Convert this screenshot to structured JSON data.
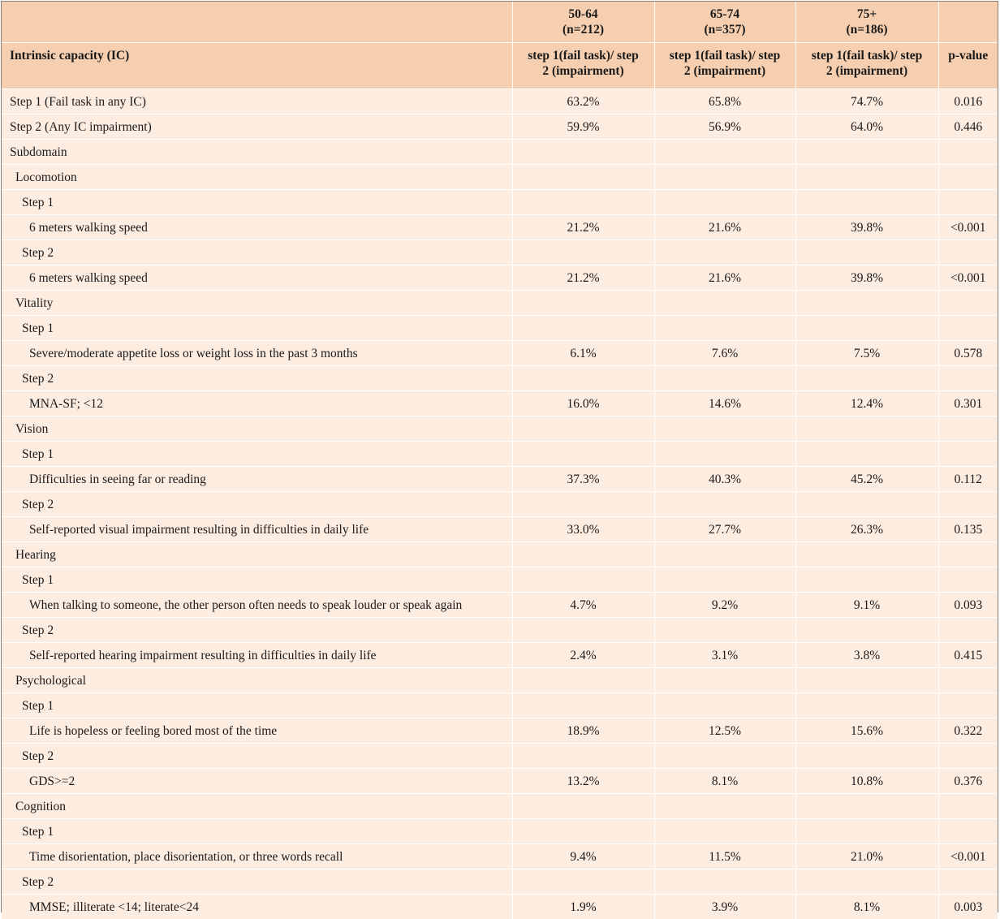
{
  "header": {
    "groups": [
      {
        "age": "50-64",
        "n": "(n=212)"
      },
      {
        "age": "65-74",
        "n": "(n=357)"
      },
      {
        "age": "75+",
        "n": "(n=186)"
      }
    ],
    "row_label": "Intrinsic capacity (IC)",
    "step_header": [
      "step 1(fail task)/   step",
      "2 (impairment)"
    ],
    "pvalue_label": "p-value"
  },
  "rows": [
    {
      "label": "Step 1 (Fail task in any IC)",
      "indent": 0,
      "values": [
        "63.2%",
        "65.8%",
        "74.7%"
      ],
      "p": "0.016"
    },
    {
      "label": "Step 2 (Any IC impairment)",
      "indent": 0,
      "values": [
        "59.9%",
        "56.9%",
        "64.0%"
      ],
      "p": "0.446"
    },
    {
      "label": "Subdomain",
      "indent": 0,
      "values": [
        "",
        "",
        ""
      ],
      "p": ""
    },
    {
      "label": "Locomotion",
      "indent": 1,
      "values": [
        "",
        "",
        ""
      ],
      "p": ""
    },
    {
      "label": "Step 1",
      "indent": 2,
      "values": [
        "",
        "",
        ""
      ],
      "p": ""
    },
    {
      "label": "6 meters walking speed",
      "indent": 3,
      "values": [
        "21.2%",
        "21.6%",
        "39.8%"
      ],
      "p": "<0.001"
    },
    {
      "label": "Step 2",
      "indent": 2,
      "values": [
        "",
        "",
        ""
      ],
      "p": ""
    },
    {
      "label": "6 meters walking speed",
      "indent": 3,
      "values": [
        "21.2%",
        "21.6%",
        "39.8%"
      ],
      "p": "<0.001"
    },
    {
      "label": "Vitality",
      "indent": 1,
      "values": [
        "",
        "",
        ""
      ],
      "p": ""
    },
    {
      "label": "Step 1",
      "indent": 2,
      "values": [
        "",
        "",
        ""
      ],
      "p": ""
    },
    {
      "label": "Severe/moderate appetite loss or weight loss in the past 3 months",
      "indent": 3,
      "values": [
        "6.1%",
        "7.6%",
        "7.5%"
      ],
      "p": "0.578"
    },
    {
      "label": "Step 2",
      "indent": 2,
      "values": [
        "",
        "",
        ""
      ],
      "p": ""
    },
    {
      "label": "MNA-SF; <12",
      "indent": 3,
      "values": [
        "16.0%",
        "14.6%",
        "12.4%"
      ],
      "p": "0.301"
    },
    {
      "label": "Vision",
      "indent": 1,
      "values": [
        "",
        "",
        ""
      ],
      "p": ""
    },
    {
      "label": "Step 1",
      "indent": 2,
      "values": [
        "",
        "",
        ""
      ],
      "p": ""
    },
    {
      "label": "Difficulties in seeing far or reading",
      "indent": 3,
      "values": [
        "37.3%",
        "40.3%",
        "45.2%"
      ],
      "p": "0.112"
    },
    {
      "label": "Step 2",
      "indent": 2,
      "values": [
        "",
        "",
        ""
      ],
      "p": ""
    },
    {
      "label": "Self-reported visual impairment resulting in difficulties in daily life",
      "indent": 3,
      "values": [
        "33.0%",
        "27.7%",
        "26.3%"
      ],
      "p": "0.135"
    },
    {
      "label": "Hearing",
      "indent": 1,
      "values": [
        "",
        "",
        ""
      ],
      "p": ""
    },
    {
      "label": "Step 1",
      "indent": 2,
      "values": [
        "",
        "",
        ""
      ],
      "p": ""
    },
    {
      "label": "When talking to someone, the other person often needs to speak louder or speak again",
      "indent": 3,
      "values": [
        "4.7%",
        "9.2%",
        "9.1%"
      ],
      "p": "0.093"
    },
    {
      "label": "Step 2",
      "indent": 2,
      "values": [
        "",
        "",
        ""
      ],
      "p": ""
    },
    {
      "label": "Self-reported hearing impairment resulting in difficulties in daily life",
      "indent": 3,
      "values": [
        "2.4%",
        "3.1%",
        "3.8%"
      ],
      "p": "0.415"
    },
    {
      "label": "Psychological",
      "indent": 1,
      "values": [
        "",
        "",
        ""
      ],
      "p": ""
    },
    {
      "label": "Step 1",
      "indent": 2,
      "values": [
        "",
        "",
        ""
      ],
      "p": ""
    },
    {
      "label": "Life is hopeless or feeling bored most of the time",
      "indent": 3,
      "values": [
        "18.9%",
        "12.5%",
        "15.6%"
      ],
      "p": "0.322"
    },
    {
      "label": "Step 2",
      "indent": 2,
      "values": [
        "",
        "",
        ""
      ],
      "p": ""
    },
    {
      "label": "GDS>=2",
      "indent": 3,
      "values": [
        "13.2%",
        "8.1%",
        "10.8%"
      ],
      "p": "0.376"
    },
    {
      "label": "Cognition",
      "indent": 1,
      "values": [
        "",
        "",
        ""
      ],
      "p": ""
    },
    {
      "label": "Step 1",
      "indent": 2,
      "values": [
        "",
        "",
        ""
      ],
      "p": ""
    },
    {
      "label": "Time disorientation, place disorientation, or three words recall",
      "indent": 3,
      "values": [
        "9.4%",
        "11.5%",
        "21.0%"
      ],
      "p": "<0.001"
    },
    {
      "label": "Step 2",
      "indent": 2,
      "values": [
        "",
        "",
        ""
      ],
      "p": ""
    },
    {
      "label": "MMSE; illiterate <14; literate<24",
      "indent": 3,
      "values": [
        "1.9%",
        "3.9%",
        "8.1%"
      ],
      "p": "0.003"
    }
  ]
}
